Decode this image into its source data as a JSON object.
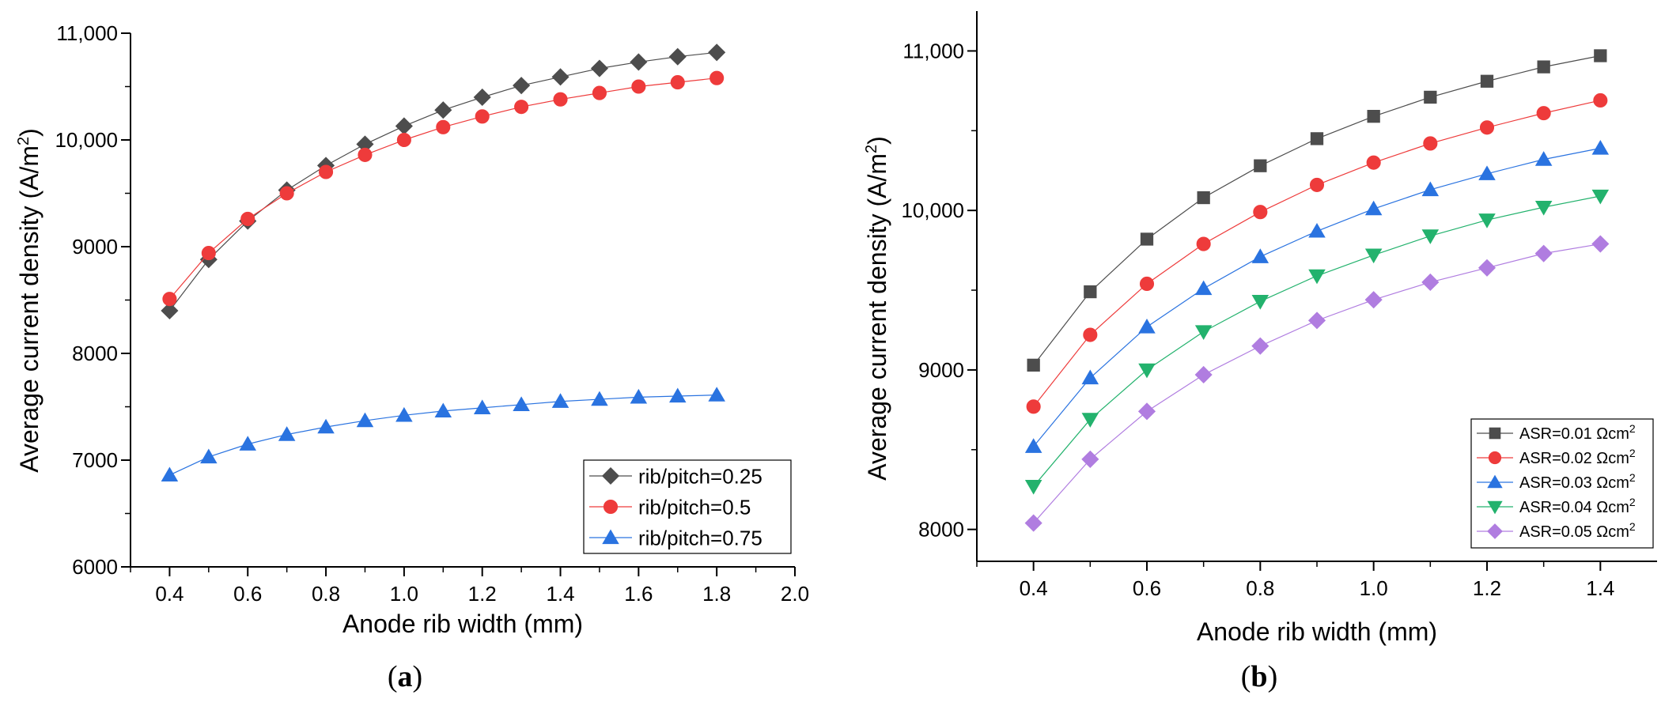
{
  "chart_data": [
    {
      "type": "line",
      "panel_label": "(a)",
      "panel_letter": "a",
      "xlabel": "Anode rib width (mm)",
      "ylabel": "Average current density (A/m2)",
      "ylabel_main": "Average current density (A/m",
      "ylabel_sup": "2",
      "ylabel_end": ")",
      "xlim": [
        0.3,
        2.0
      ],
      "ylim": [
        6000,
        11000
      ],
      "xticks": [
        "0.4",
        "0.6",
        "0.8",
        "1.0",
        "1.2",
        "1.4",
        "1.6",
        "1.8",
        "2.0"
      ],
      "yticks": [
        "6000",
        "7000",
        "8000",
        "9000",
        "10,000",
        "11,000"
      ],
      "legend_position": "bottom-right",
      "x": [
        0.4,
        0.5,
        0.6,
        0.7,
        0.8,
        0.9,
        1.0,
        1.1,
        1.2,
        1.3,
        1.4,
        1.5,
        1.6,
        1.7,
        1.8
      ],
      "series": [
        {
          "name": "rib/pitch=0.25",
          "marker": "diamond",
          "color": "#4d4d4d",
          "values": [
            8400,
            8880,
            9240,
            9530,
            9760,
            9960,
            10130,
            10280,
            10400,
            10510,
            10590,
            10670,
            10730,
            10780,
            10820
          ]
        },
        {
          "name": "rib/pitch=0.5",
          "marker": "circle",
          "color": "#ee3b3b",
          "values": [
            8510,
            8940,
            9260,
            9500,
            9700,
            9860,
            10000,
            10120,
            10220,
            10310,
            10380,
            10440,
            10500,
            10540,
            10580
          ]
        },
        {
          "name": "rib/pitch=0.75",
          "marker": "triangle-up",
          "color": "#2a73e0",
          "values": [
            6860,
            7030,
            7150,
            7240,
            7310,
            7370,
            7420,
            7460,
            7490,
            7520,
            7550,
            7570,
            7590,
            7600,
            7610
          ]
        }
      ]
    },
    {
      "type": "line",
      "panel_label": "(b)",
      "panel_letter": "b",
      "xlabel": "Anode rib width (mm)",
      "ylabel": "Average current density (A/m2)",
      "ylabel_main": "Average current density (A/m",
      "ylabel_sup": "2",
      "ylabel_end": ")",
      "xlim": [
        0.3,
        1.5
      ],
      "ylim": [
        7800,
        11250
      ],
      "xticks": [
        "0.4",
        "0.6",
        "0.8",
        "1.0",
        "1.2",
        "1.4"
      ],
      "yticks": [
        "8000",
        "9000",
        "10,000",
        "11,000"
      ],
      "legend_position": "bottom-right",
      "x": [
        0.4,
        0.5,
        0.6,
        0.7,
        0.8,
        0.9,
        1.0,
        1.1,
        1.2,
        1.3,
        1.4
      ],
      "series": [
        {
          "name": "ASR=0.01 Ωcm2",
          "name_main": "ASR=0.01 Ωcm",
          "name_sup": "2",
          "marker": "square",
          "color": "#4d4d4d",
          "values": [
            9030,
            9490,
            9820,
            10080,
            10280,
            10450,
            10590,
            10710,
            10810,
            10900,
            10970
          ]
        },
        {
          "name": "ASR=0.02 Ωcm2",
          "name_main": "ASR=0.02 Ωcm",
          "name_sup": "2",
          "marker": "circle",
          "color": "#ee3b3b",
          "values": [
            8770,
            9220,
            9540,
            9790,
            9990,
            10160,
            10300,
            10420,
            10520,
            10610,
            10690
          ]
        },
        {
          "name": "ASR=0.03 Ωcm2",
          "name_main": "ASR=0.03 Ωcm",
          "name_sup": "2",
          "marker": "triangle-up",
          "color": "#2a73e0",
          "values": [
            8520,
            8950,
            9270,
            9510,
            9710,
            9870,
            10010,
            10130,
            10230,
            10320,
            10390
          ]
        },
        {
          "name": "ASR=0.04 Ωcm2",
          "name_main": "ASR=0.04 Ωcm",
          "name_sup": "2",
          "marker": "triangle-down",
          "color": "#23b26d",
          "values": [
            8270,
            8690,
            9000,
            9240,
            9430,
            9590,
            9720,
            9840,
            9940,
            10020,
            10090
          ]
        },
        {
          "name": "ASR=0.05 Ωcm2",
          "name_main": "ASR=0.05 Ωcm",
          "name_sup": "2",
          "marker": "diamond",
          "color": "#b07de0",
          "values": [
            8040,
            8440,
            8740,
            8970,
            9150,
            9310,
            9440,
            9550,
            9640,
            9730,
            9790
          ]
        }
      ]
    }
  ]
}
